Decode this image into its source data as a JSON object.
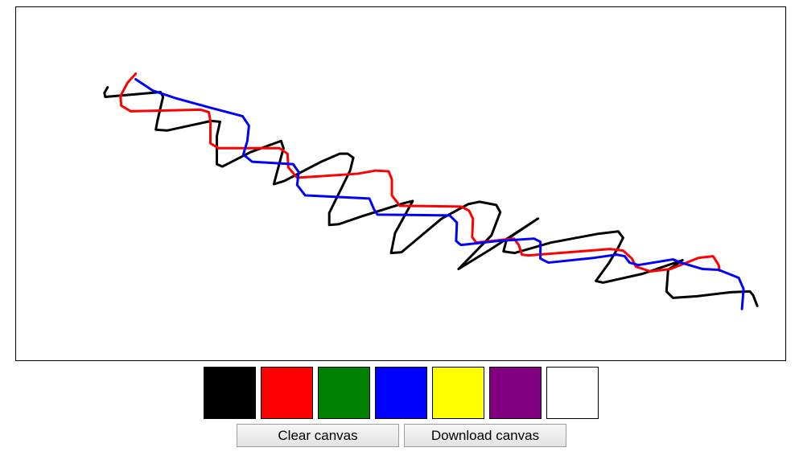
{
  "palette": {
    "colors": [
      {
        "name": "black",
        "hex": "#000000"
      },
      {
        "name": "red",
        "hex": "#ff0000"
      },
      {
        "name": "green",
        "hex": "#008000"
      },
      {
        "name": "blue",
        "hex": "#0000ff"
      },
      {
        "name": "yellow",
        "hex": "#ffff00"
      },
      {
        "name": "purple",
        "hex": "#800080"
      },
      {
        "name": "white",
        "hex": "#ffffff"
      }
    ]
  },
  "buttons": {
    "clear_label": "Clear canvas",
    "download_label": "Download canvas"
  },
  "strokes": [
    {
      "name": "black-stroke",
      "color": "#000000"
    },
    {
      "name": "red-stroke",
      "color": "#ff0000"
    },
    {
      "name": "blue-stroke",
      "color": "#0000ff"
    }
  ]
}
